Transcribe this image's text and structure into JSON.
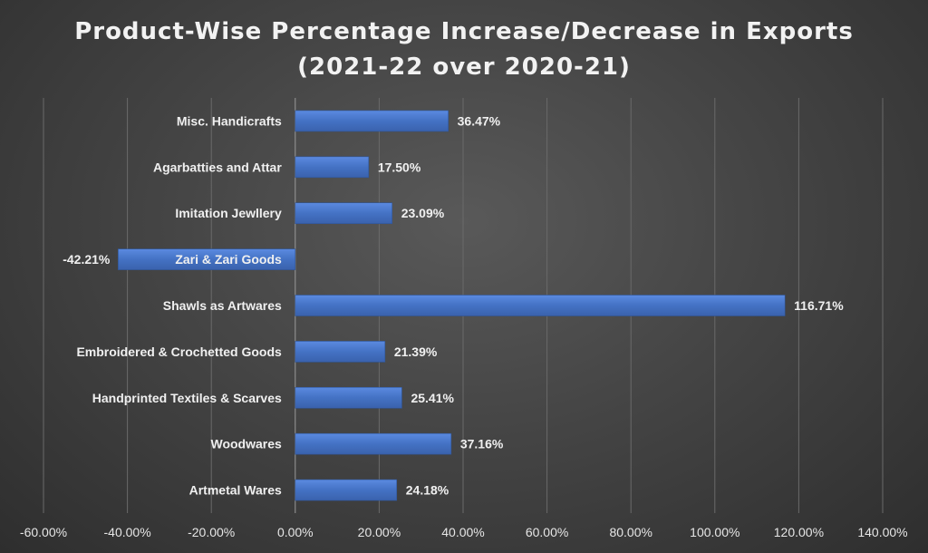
{
  "chart_data": {
    "type": "bar",
    "orientation": "horizontal",
    "title": [
      "Product-Wise Percentage Increase/Decrease in Exports",
      "(2021-22 over 2020-21)"
    ],
    "categories": [
      "Misc. Handicrafts",
      "Agarbatties and Attar",
      "Imitation Jewllery",
      "Zari & Zari Goods",
      "Shawls as Artwares",
      "Embroidered & Crochetted Goods",
      "Handprinted Textiles & Scarves",
      "Woodwares",
      "Artmetal Wares"
    ],
    "values": [
      36.47,
      17.5,
      23.09,
      -42.21,
      116.71,
      21.39,
      25.41,
      37.16,
      24.18
    ],
    "value_labels": [
      "36.47%",
      "17.50%",
      "23.09%",
      "-42.21%",
      "116.71%",
      "21.39%",
      "25.41%",
      "37.16%",
      "24.18%"
    ],
    "xlim": [
      -60,
      140
    ],
    "xticks": [
      -60,
      -40,
      -20,
      0,
      20,
      40,
      60,
      80,
      100,
      120,
      140
    ],
    "xtick_labels": [
      "-60.00%",
      "-40.00%",
      "-20.00%",
      "0.00%",
      "20.00%",
      "40.00%",
      "60.00%",
      "80.00%",
      "100.00%",
      "120.00%",
      "140.00%"
    ],
    "xlabel": "",
    "ylabel": "",
    "grid": true,
    "legend": "none",
    "bar_color": "#4472c4"
  }
}
